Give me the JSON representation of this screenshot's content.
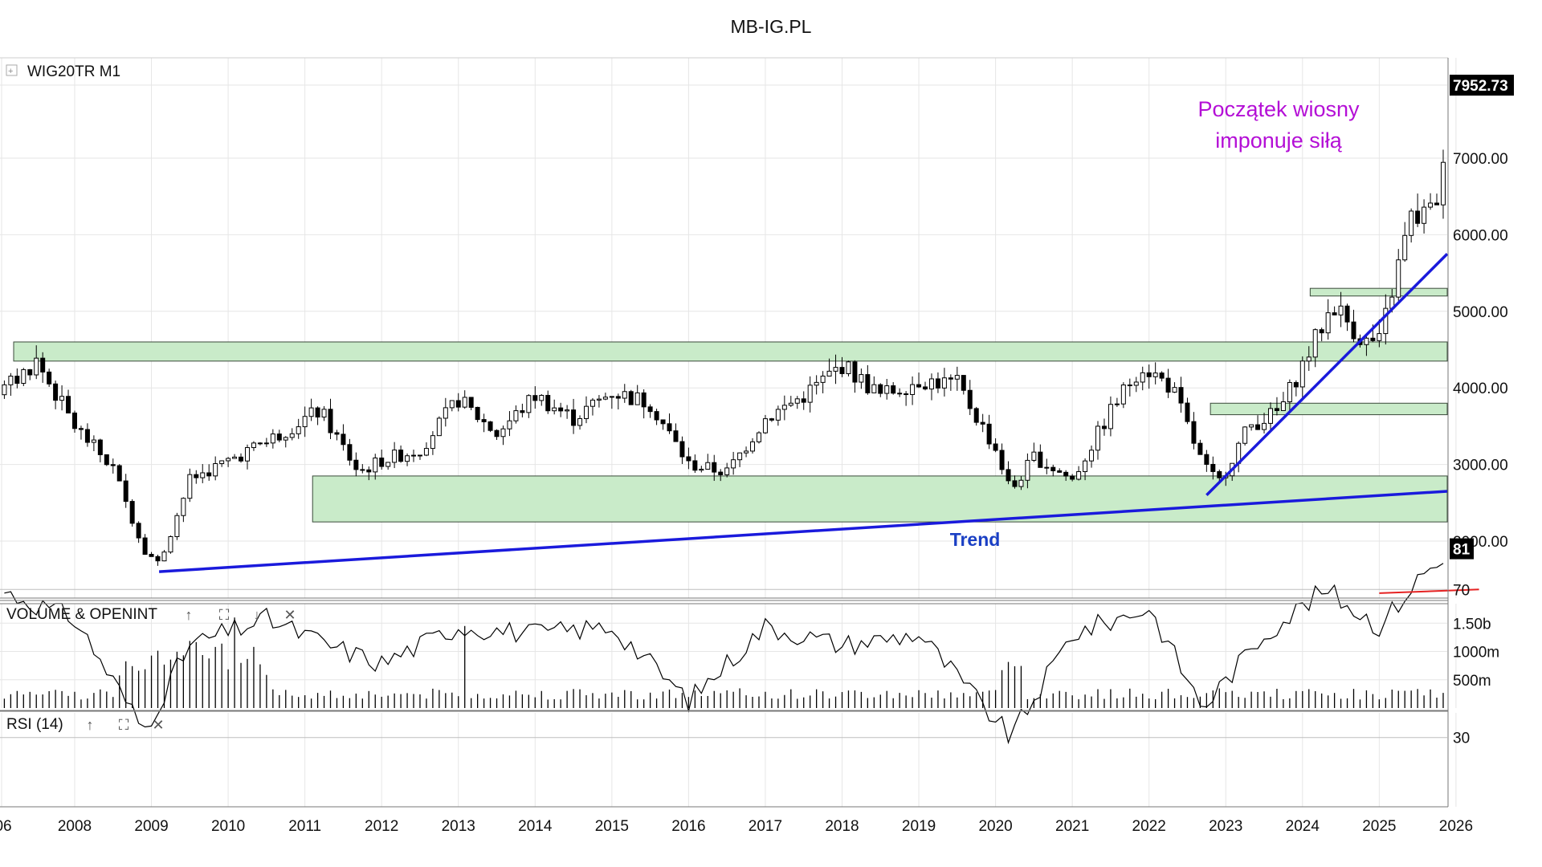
{
  "header": {
    "title": "MB-IG.PL"
  },
  "price_panel": {
    "symbol": "WIG20TR",
    "timeframe": "M1",
    "expand_glyph": "[+]",
    "last_price": "7952.73",
    "annotation": [
      "Początek wiosny",
      "imponuje siłą"
    ],
    "trend_label": "Trend",
    "y_ticks": [
      "2000.00",
      "3000.00",
      "4000.00",
      "5000.00",
      "6000.00",
      "7000.00"
    ]
  },
  "volume_panel": {
    "title": "VOLUME & OPENINT",
    "buttons": [
      "↑",
      "⛶",
      "↓",
      "✕"
    ],
    "y_ticks": [
      "1.50b",
      "1000m",
      "500m"
    ]
  },
  "rsi_panel": {
    "title": "RSI (14)",
    "buttons": [
      "↑",
      "⛶",
      "✕"
    ],
    "last_value": "81",
    "y_ticks": [
      "70",
      "30"
    ]
  },
  "x_axis": {
    "labels": [
      "06",
      "2008",
      "2009",
      "2010",
      "2011",
      "2012",
      "2013",
      "2014",
      "2015",
      "2016",
      "2017",
      "2018",
      "2019",
      "2020",
      "2021",
      "2022",
      "2023",
      "2024",
      "2025",
      "2026"
    ]
  },
  "colors": {
    "zone_fill": "#c9ebc9",
    "zone_stroke": "#3a4a3a",
    "trendline": "#1a1adc",
    "annotation": "#b40fd6",
    "trend_label": "#1a3fc4",
    "rsi_line": "#e52222",
    "grid": "#e6e6e6"
  },
  "chart_data": {
    "type": "candlestick",
    "title": "WIG20TR M1",
    "y_scale": "linear",
    "ylim": [
      1200,
      8700
    ],
    "series": [
      {
        "name": "WIG20TR",
        "x": [
          2007.0,
          2007.5,
          2008.0,
          2008.5,
          2008.9,
          2009.1,
          2009.5,
          2010.0,
          2010.5,
          2011.0,
          2011.2,
          2011.7,
          2012.0,
          2012.5,
          2013.0,
          2013.5,
          2014.0,
          2014.5,
          2015.0,
          2015.5,
          2016.0,
          2016.5,
          2017.0,
          2017.5,
          2018.0,
          2018.5,
          2019.0,
          2019.5,
          2020.0,
          2020.2,
          2020.5,
          2021.0,
          2021.5,
          2021.9,
          2022.3,
          2022.7,
          2022.9,
          2023.3,
          2023.7,
          2024.0,
          2024.4,
          2024.8,
          2025.0,
          2025.4,
          2025.7,
          2026.0,
          2026.25
        ],
        "close": [
          3900,
          4350,
          3500,
          2950,
          1900,
          1700,
          2800,
          3050,
          3300,
          3600,
          3700,
          2900,
          3050,
          3200,
          3850,
          3400,
          3900,
          3600,
          3950,
          3800,
          3000,
          2900,
          3600,
          3900,
          4300,
          3900,
          4100,
          4050,
          3200,
          2650,
          3100,
          2800,
          3700,
          4300,
          4000,
          3000,
          2750,
          3500,
          3700,
          4300,
          5100,
          4600,
          4600,
          6200,
          6300,
          7450,
          7952.73
        ]
      },
      {
        "name": "RSI (14)",
        "x": [
          2007.0,
          2008.0,
          2008.9,
          2009.5,
          2010.5,
          2011.3,
          2012.0,
          2013.0,
          2014.0,
          2015.0,
          2016.0,
          2017.0,
          2018.0,
          2019.0,
          2020.2,
          2021.0,
          2022.0,
          2022.7,
          2023.5,
          2024.3,
          2025.0,
          2025.6,
          2026.25
        ],
        "values": [
          70,
          62,
          32,
          55,
          62,
          55,
          50,
          60,
          58,
          60,
          40,
          60,
          55,
          58,
          30,
          58,
          65,
          38,
          58,
          70,
          60,
          75,
          81
        ]
      }
    ],
    "volume_ticks": [
      "1.50b",
      "1000m",
      "500m"
    ],
    "rsi_levels": [
      70,
      30
    ],
    "zones": [
      {
        "from": 2006.0,
        "to": 2026.35,
        "low": 4350,
        "high": 4600
      },
      {
        "from": 2011.1,
        "to": 2026.35,
        "low": 2250,
        "high": 2850
      },
      {
        "from": 2022.8,
        "to": 2026.35,
        "low": 3650,
        "high": 3800
      },
      {
        "from": 2024.1,
        "to": 2026.35,
        "low": 5200,
        "high": 5300
      }
    ],
    "trendlines": [
      {
        "label": "Trend",
        "x1": 2009.1,
        "y1": 1600,
        "x2": 2026.35,
        "y2": 2650
      },
      {
        "label": "",
        "x1": 2022.75,
        "y1": 2600,
        "x2": 2026.35,
        "y2": 5750
      }
    ],
    "rsi_reference_line": {
      "x1": 2025.0,
      "y1": 69,
      "x2": 2026.3,
      "y2": 70
    }
  }
}
